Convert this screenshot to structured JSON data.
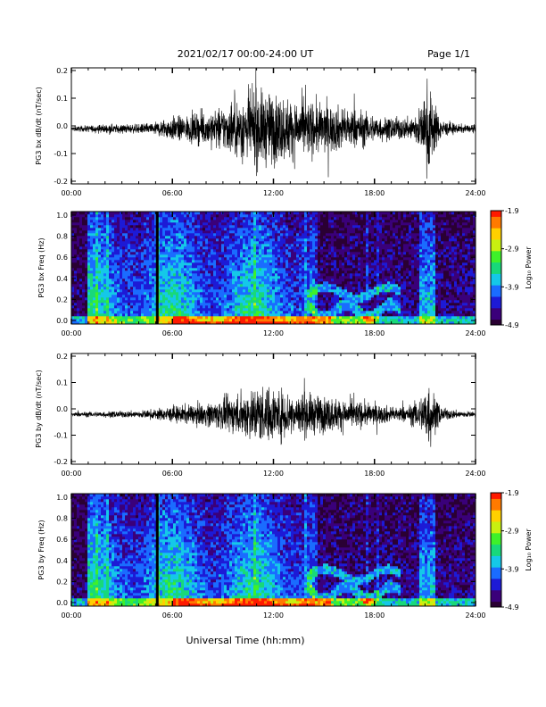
{
  "header": {
    "title": "2021/02/17  00:00-24:00 UT",
    "page": "Page 1/1"
  },
  "chart_data": [
    {
      "type": "line",
      "name": "bx_timeseries",
      "ylabel": "PG3 bx dB/dt (nT/sec)",
      "xlim": [
        0,
        24
      ],
      "ylim": [
        -0.2,
        0.2
      ],
      "x_tick_labels": [
        "00:00",
        "06:00",
        "12:00",
        "18:00",
        "24:00"
      ],
      "y_tick_labels": [
        "0.2",
        "0.1",
        "0.0",
        "-0.1",
        "-0.2"
      ],
      "baseline": -0.01,
      "envelope": {
        "hours": [
          0,
          1,
          2,
          3,
          4,
          5,
          5.5,
          6,
          7,
          8,
          9,
          10,
          11,
          12,
          13,
          14,
          15,
          16,
          17,
          18,
          19,
          20,
          20.8,
          21.2,
          21.6,
          22,
          23,
          24
        ],
        "amplitude": [
          0.004,
          0.006,
          0.008,
          0.008,
          0.008,
          0.012,
          0.018,
          0.022,
          0.024,
          0.03,
          0.04,
          0.055,
          0.07,
          0.065,
          0.055,
          0.05,
          0.045,
          0.04,
          0.035,
          0.025,
          0.02,
          0.02,
          0.04,
          0.09,
          0.04,
          0.015,
          0.008,
          0.006
        ]
      }
    },
    {
      "type": "heatmap",
      "name": "bx_spectrogram",
      "ylabel": "PG3 bx Freq (Hz)",
      "xlim": [
        0,
        24
      ],
      "ylim": [
        0,
        1.0
      ],
      "x_tick_labels": [
        "00:00",
        "06:00",
        "12:00",
        "18:00",
        "24:00"
      ],
      "y_tick_labels": [
        "1.0",
        "0.8",
        "0.6",
        "0.4",
        "0.2",
        "0.0"
      ],
      "colorbar": {
        "label": "Log₁₀ Power",
        "ticks": [
          "-1.9",
          "-2.9",
          "-3.9",
          "-4.9"
        ],
        "range": [
          -4.9,
          -1.9
        ]
      },
      "data_gap_hour": 5.1
    },
    {
      "type": "line",
      "name": "by_timeseries",
      "ylabel": "PG3 by dB/dt (nT/sec)",
      "xlim": [
        0,
        24
      ],
      "ylim": [
        -0.2,
        0.2
      ],
      "x_tick_labels": [
        "00:00",
        "06:00",
        "12:00",
        "18:00",
        "24:00"
      ],
      "y_tick_labels": [
        "0.2",
        "0.1",
        "0.0",
        "-0.1",
        "-0.2"
      ],
      "baseline": -0.02,
      "envelope": {
        "hours": [
          0,
          1,
          2,
          3,
          4,
          5,
          6,
          7,
          8,
          9,
          10,
          11,
          12,
          13,
          14,
          15,
          16,
          17,
          18,
          19,
          20,
          20.8,
          21.2,
          21.6,
          22,
          23,
          24
        ],
        "amplitude": [
          0.004,
          0.005,
          0.006,
          0.006,
          0.007,
          0.01,
          0.015,
          0.018,
          0.022,
          0.03,
          0.04,
          0.055,
          0.05,
          0.045,
          0.04,
          0.035,
          0.03,
          0.025,
          0.02,
          0.015,
          0.015,
          0.035,
          0.07,
          0.035,
          0.012,
          0.007,
          0.005
        ]
      }
    },
    {
      "type": "heatmap",
      "name": "by_spectrogram",
      "ylabel": "PG3 by Freq (Hz)",
      "xlim": [
        0,
        24
      ],
      "ylim": [
        0,
        1.0
      ],
      "x_tick_labels": [
        "00:00",
        "06:00",
        "12:00",
        "18:00",
        "24:00"
      ],
      "y_tick_labels": [
        "1.0",
        "0.8",
        "0.6",
        "0.4",
        "0.2",
        "0.0"
      ],
      "colorbar": {
        "label": "Log₁₀ Power",
        "ticks": [
          "-1.9",
          "-2.9",
          "-3.9",
          "-4.9"
        ],
        "range": [
          -4.9,
          -1.9
        ]
      },
      "data_gap_hour": 5.1
    }
  ],
  "xlabel": "Universal Time (hh:mm)",
  "colors": {
    "trace": "#000000",
    "colormap": [
      "#2a0033",
      "#3a007a",
      "#1d1ad6",
      "#1a6cff",
      "#15c8e8",
      "#18d87a",
      "#3ef02a",
      "#c8f010",
      "#ffd000",
      "#ff7a00",
      "#ff1a00"
    ]
  }
}
